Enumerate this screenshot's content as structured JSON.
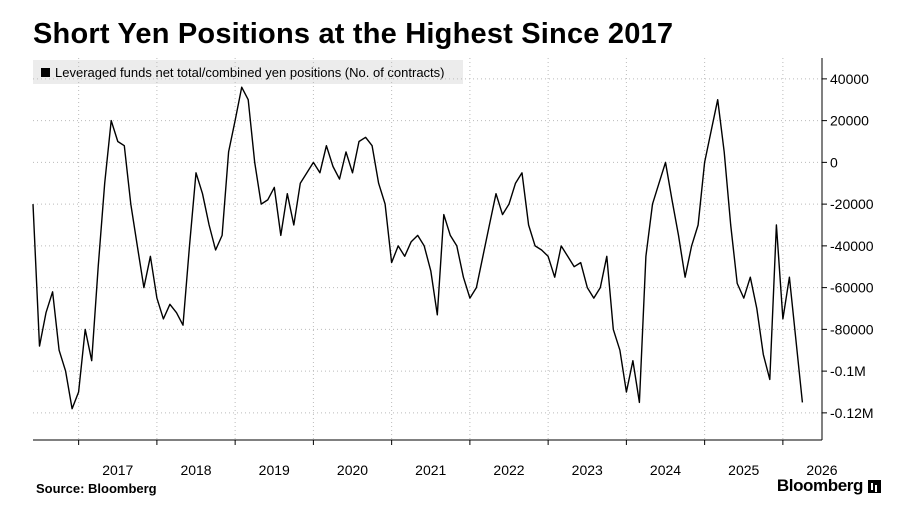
{
  "header": {
    "title": "Short Yen Positions at the Highest Since 2017"
  },
  "footer": {
    "source": "Source: Bloomberg",
    "brand": "Bloomberg",
    "brand_icon": "bloomberg-logo-mark"
  },
  "chart_data": {
    "type": "line",
    "legend": "Leveraged funds net total/combined yen positions (No. of contracts)",
    "legend_placement": "top-left",
    "axis_side": "right",
    "grid": "dotted",
    "colors": {
      "line": "#000000",
      "grid": "#bbbbbb"
    },
    "ylim": [
      -133000,
      50000
    ],
    "y_ticks": [
      {
        "value": 40000,
        "label": "40000"
      },
      {
        "value": 20000,
        "label": "20000"
      },
      {
        "value": 0,
        "label": "0"
      },
      {
        "value": -20000,
        "label": "-20000"
      },
      {
        "value": -40000,
        "label": "-40000"
      },
      {
        "value": -60000,
        "label": "-60000"
      },
      {
        "value": -80000,
        "label": "-80000"
      },
      {
        "value": -100000,
        "label": "-0.1M"
      },
      {
        "value": -120000,
        "label": "-0.12M"
      }
    ],
    "xlim": [
      "2016-06",
      "2026-07"
    ],
    "x_ticks": [
      "2017",
      "2018",
      "2019",
      "2020",
      "2021",
      "2022",
      "2023",
      "2024",
      "2025",
      "2026"
    ],
    "series": [
      {
        "x": [
          "2016-06",
          "2016-07",
          "2016-08",
          "2016-09",
          "2016-10",
          "2016-11",
          "2016-12",
          "2017-01",
          "2017-02",
          "2017-03",
          "2017-04",
          "2017-05",
          "2017-06",
          "2017-07",
          "2017-08",
          "2017-09",
          "2017-10",
          "2017-11",
          "2017-12",
          "2018-01",
          "2018-02",
          "2018-03",
          "2018-04",
          "2018-05",
          "2018-06",
          "2018-07",
          "2018-08",
          "2018-09",
          "2018-10",
          "2018-11",
          "2018-12",
          "2019-01",
          "2019-02",
          "2019-03",
          "2019-04",
          "2019-05",
          "2019-06",
          "2019-07",
          "2019-08",
          "2019-09",
          "2019-10",
          "2019-11",
          "2019-12",
          "2020-01",
          "2020-02",
          "2020-03",
          "2020-04",
          "2020-05",
          "2020-06",
          "2020-07",
          "2020-08",
          "2020-09",
          "2020-10",
          "2020-11",
          "2020-12",
          "2021-01",
          "2021-02",
          "2021-03",
          "2021-04",
          "2021-05",
          "2021-06",
          "2021-07",
          "2021-08",
          "2021-09",
          "2021-10",
          "2021-11",
          "2021-12",
          "2022-01",
          "2022-02",
          "2022-03",
          "2022-04",
          "2022-05",
          "2022-06",
          "2022-07",
          "2022-08",
          "2022-09",
          "2022-10",
          "2022-11",
          "2022-12",
          "2023-01",
          "2023-02",
          "2023-03",
          "2023-04",
          "2023-05",
          "2023-06",
          "2023-07",
          "2023-08",
          "2023-09",
          "2023-10",
          "2023-11",
          "2023-12",
          "2024-01",
          "2024-02",
          "2024-03",
          "2024-04",
          "2024-05",
          "2024-06",
          "2024-07",
          "2024-08",
          "2024-09",
          "2024-10",
          "2024-11",
          "2024-12",
          "2025-01",
          "2025-02",
          "2025-03",
          "2025-04",
          "2025-05",
          "2025-06",
          "2025-07",
          "2025-08",
          "2025-09",
          "2025-10",
          "2025-11",
          "2025-12",
          "2026-01",
          "2026-02",
          "2026-03",
          "2026-04"
        ],
        "values": [
          -20000,
          -88000,
          -72000,
          -62000,
          -90000,
          -100000,
          -118000,
          -110000,
          -80000,
          -95000,
          -50000,
          -10000,
          20000,
          10000,
          8000,
          -20000,
          -40000,
          -60000,
          -45000,
          -65000,
          -75000,
          -68000,
          -72000,
          -78000,
          -40000,
          -5000,
          -15000,
          -30000,
          -42000,
          -35000,
          5000,
          20000,
          36000,
          30000,
          0,
          -20000,
          -18000,
          -12000,
          -35000,
          -15000,
          -30000,
          -10000,
          -5000,
          0,
          -5000,
          8000,
          -2000,
          -8000,
          5000,
          -5000,
          10000,
          12000,
          8000,
          -10000,
          -20000,
          -48000,
          -40000,
          -45000,
          -38000,
          -35000,
          -40000,
          -52000,
          -73000,
          -25000,
          -35000,
          -40000,
          -55000,
          -65000,
          -60000,
          -45000,
          -30000,
          -15000,
          -25000,
          -20000,
          -10000,
          -5000,
          -30000,
          -40000,
          -42000,
          -45000,
          -55000,
          -40000,
          -45000,
          -50000,
          -48000,
          -60000,
          -65000,
          -60000,
          -45000,
          -80000,
          -90000,
          -110000,
          -95000,
          -115000,
          -45000,
          -20000,
          -10000,
          0,
          -18000,
          -35000,
          -55000,
          -40000,
          -30000,
          0,
          15000,
          30000,
          5000,
          -30000,
          -58000,
          -65000,
          -55000,
          -70000,
          -92000,
          -104000,
          -30000,
          -75000,
          -55000,
          -85000,
          -115000
        ]
      }
    ]
  }
}
